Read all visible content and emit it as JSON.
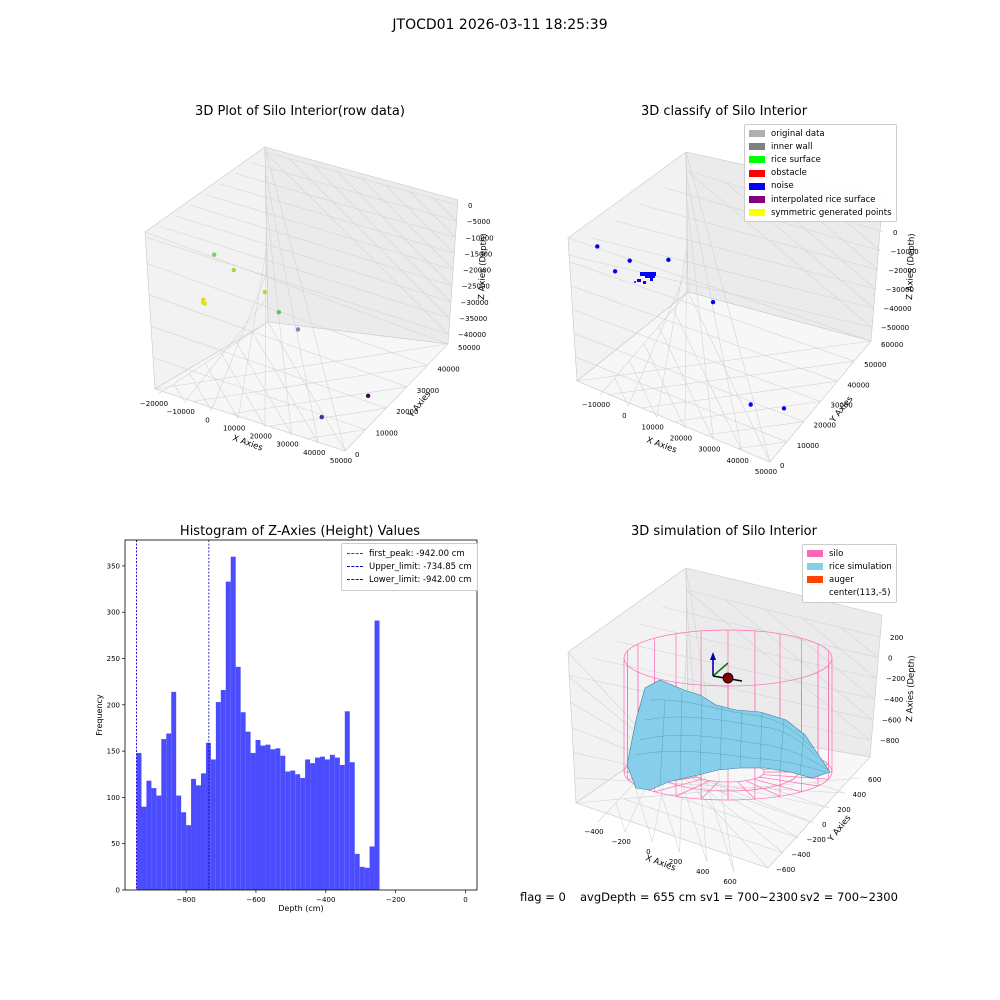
{
  "figure": {
    "suptitle": "JTOCD01 2026-03-11 18:25:39",
    "footer": {
      "flag": "flag = 0",
      "avg_depth": "avgDepth = 655 cm",
      "sv1": "sv1 = 700~2300",
      "sv2": "sv2 = 700~2300"
    }
  },
  "chart_data": [
    {
      "id": "raw-3d",
      "type": "scatter",
      "title": "3D Plot of Silo Interior(row data)",
      "xlabel": "X Axies",
      "ylabel": "Y Axies",
      "zlabel": "Z Axies (Depth)",
      "xticks": [
        "−20000",
        "−10000",
        "0",
        "10000",
        "20000",
        "30000",
        "40000",
        "50000"
      ],
      "yticks": [
        "0",
        "10000",
        "20000",
        "30000",
        "40000",
        "50000"
      ],
      "zticks": [
        "0",
        "−5000",
        "−10000",
        "−15000",
        "−20000",
        "−25000",
        "−30000",
        "−35000",
        "−40000"
      ],
      "points": [
        {
          "x": -2000,
          "y": 0,
          "z": -14000,
          "color": "#d4e026"
        },
        {
          "x": -1500,
          "y": 0,
          "z": -15000,
          "color": "#dce126"
        },
        {
          "x": -3000,
          "y": 1000,
          "z": -15500,
          "color": "#e2e31a"
        },
        {
          "x": 2000,
          "y": 12000,
          "z": -11000,
          "color": "#9ed93a"
        },
        {
          "x": -12000,
          "y": 20000,
          "z": -14000,
          "color": "#7ad151"
        },
        {
          "x": 8000,
          "y": 20000,
          "z": -20000,
          "color": "#addc30"
        },
        {
          "x": 25000,
          "y": 5000,
          "z": -14000,
          "color": "#54c568"
        },
        {
          "x": 27000,
          "y": 12000,
          "z": -22000,
          "color": "#8e7cc3"
        },
        {
          "x": 40000,
          "y": 5000,
          "z": -40000,
          "color": "#4b2991"
        },
        {
          "x": 48000,
          "y": 20000,
          "z": -40000,
          "color": "#440154"
        }
      ]
    },
    {
      "id": "classify-3d",
      "type": "scatter",
      "title": "3D classify of Silo Interior",
      "xlabel": "X Axies",
      "ylabel": "Y Axies",
      "zlabel": "Z Axies (Depth)",
      "xticks": [
        "−10000",
        "0",
        "10000",
        "20000",
        "30000",
        "40000",
        "50000"
      ],
      "yticks": [
        "0",
        "10000",
        "20000",
        "30000",
        "40000",
        "50000",
        "60000"
      ],
      "zticks": [
        "0",
        "−10000",
        "−20000",
        "−30000",
        "−40000",
        "−50000"
      ],
      "legend": [
        {
          "label": "original data",
          "color": "#b0b0b0"
        },
        {
          "label": "inner wall",
          "color": "#808080"
        },
        {
          "label": "rice surface",
          "color": "#00ff00"
        },
        {
          "label": "obstacle",
          "color": "#ff0000"
        },
        {
          "label": "noise",
          "color": "#0000ff"
        },
        {
          "label": "interpolated rice surface",
          "color": "#800080"
        },
        {
          "label": "symmetric generated points",
          "color": "#ffff00"
        }
      ],
      "points": [
        {
          "x": -1000,
          "y": 2000,
          "z": -6000,
          "color": "#0000ff"
        },
        {
          "x": 1000,
          "y": 8000,
          "z": -5000,
          "color": "#0000ff"
        },
        {
          "x": 9000,
          "y": 18000,
          "z": -8000,
          "color": "#0000ff"
        },
        {
          "x": -14000,
          "y": 15000,
          "z": -12000,
          "color": "#0000ff"
        },
        {
          "x": 26000,
          "y": 14000,
          "z": -14000,
          "color": "#0000ff"
        },
        {
          "x": 42000,
          "y": 5000,
          "z": -42000,
          "color": "#0000ff"
        },
        {
          "x": 48000,
          "y": 15000,
          "z": -48000,
          "color": "#0000ff"
        }
      ]
    },
    {
      "id": "histogram",
      "type": "bar",
      "title": "Histogram of Z-Axies (Height) Values",
      "xlabel": "Depth (cm)",
      "ylabel": "Frequency",
      "xlim": [
        -975,
        33
      ],
      "ylim": [
        0,
        378
      ],
      "xticks": [
        -800,
        -600,
        -400,
        -200,
        0
      ],
      "yticks": [
        0,
        50,
        100,
        150,
        200,
        250,
        300,
        350
      ],
      "tick_labels": {
        "-800": "−800",
        "-600": "−600",
        "-400": "−400",
        "-200": "−200",
        "0": "0"
      },
      "bin_start": -942,
      "bin_width": 14.2,
      "values": [
        148,
        90,
        118,
        110,
        102,
        163,
        169,
        214,
        102,
        84,
        70,
        120,
        113,
        126,
        159,
        141,
        203,
        216,
        333,
        360,
        241,
        192,
        171,
        148,
        162,
        156,
        157,
        152,
        153,
        145,
        128,
        129,
        125,
        121,
        141,
        137,
        143,
        144,
        141,
        146,
        143,
        135,
        193,
        138,
        39,
        25,
        24,
        47,
        291
      ],
      "bar_color": "#4c4cff",
      "vlines": [
        {
          "label": "first_peak: -942.00 cm",
          "x": -942,
          "color": "#ff0000"
        },
        {
          "label": "Upper_limit: -734.85 cm",
          "x": -734.85,
          "color": "#0000aa"
        },
        {
          "label": "Lower_limit: -942.00 cm",
          "x": -942,
          "color": "#0000ff"
        }
      ]
    },
    {
      "id": "simulation-3d",
      "type": "area",
      "title": "3D simulation of Silo Interior",
      "xlabel": "X Axies",
      "ylabel": "Y Axies",
      "zlabel": "Z Axies (Depth)",
      "xticks": [
        "−400",
        "−200",
        "0",
        "200",
        "400",
        "600"
      ],
      "yticks": [
        "600",
        "400",
        "200",
        "0",
        "−200",
        "−400",
        "−600"
      ],
      "zticks": [
        "200",
        "0",
        "−200",
        "−400",
        "−600",
        "−800"
      ],
      "legend": [
        {
          "label": "silo",
          "color": "#ff69b4"
        },
        {
          "label": "rice simulation",
          "color": "#87ceeb"
        },
        {
          "label": "auger",
          "color": "#ff4500"
        },
        {
          "label": "center(113,-5)",
          "color": ""
        }
      ]
    }
  ]
}
